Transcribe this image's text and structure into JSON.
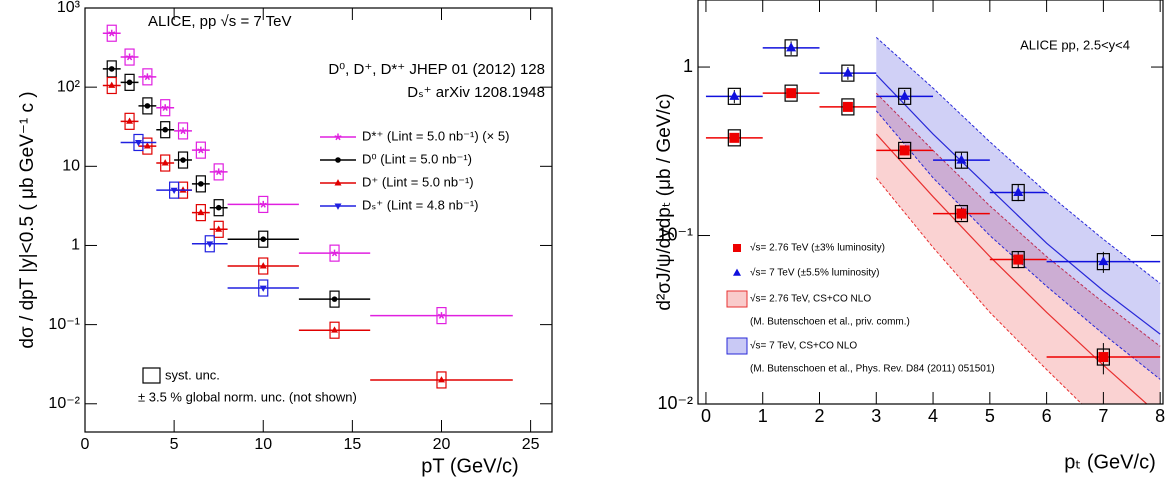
{
  "chart_data": [
    {
      "type": "scatter",
      "log_y": true,
      "xlabel": "pT (GeV/c)",
      "ylabel": "dσ / dpT |y|<0.5  ( μb GeV⁻¹ c )",
      "xlim": [
        0,
        26.2
      ],
      "ylim": [
        0.0044,
        1000
      ],
      "xticks": [
        0,
        5,
        10,
        15,
        20,
        25
      ],
      "yticks": [
        {
          "value": 0.01,
          "label": "10⁻²"
        },
        {
          "value": 0.1,
          "label": "10⁻¹"
        },
        1,
        10,
        {
          "value": 100,
          "label": "10²"
        },
        {
          "value": 1000,
          "label": "10³"
        }
      ],
      "annotations": [
        "ALICE, pp √s = 7 TeV",
        "D⁰, D⁺, D*⁺ JHEP 01 (2012) 128",
        "Dₛ⁺  arXiv 1208.1948",
        "syst. unc.",
        "± 3.5 % global norm. unc. (not shown)"
      ],
      "series": [
        {
          "name": "D*⁺ (Lint = 5.0 nb⁻¹) (× 5)",
          "color": "#e020e0",
          "marker": "star",
          "x": [
            1.5,
            2.5,
            3.5,
            4.5,
            5.5,
            6.5,
            7.5,
            10,
            14,
            20
          ],
          "xerr": [
            0.5,
            0.5,
            0.5,
            0.5,
            0.5,
            0.5,
            0.5,
            2,
            2,
            4
          ],
          "values": [
            480,
            240,
            135,
            55,
            28,
            16,
            8.5,
            3.3,
            0.8,
            0.13
          ]
        },
        {
          "name": "D⁰ (Lint = 5.0 nb⁻¹)",
          "color": "#000000",
          "marker": "circle",
          "x": [
            1.5,
            2.5,
            3.5,
            4.5,
            5.5,
            6.5,
            7.5,
            10,
            14
          ],
          "xerr": [
            0.5,
            0.5,
            0.5,
            0.5,
            0.5,
            0.5,
            0.5,
            2,
            2
          ],
          "values": [
            170,
            115,
            58,
            29,
            12,
            6,
            3,
            1.2,
            0.21
          ]
        },
        {
          "name": "D⁺ (Lint = 5.0 nb⁻¹)",
          "color": "#e00000",
          "marker": "triangle",
          "x": [
            1.5,
            2.5,
            3.5,
            4.5,
            5.5,
            6.5,
            7.5,
            10,
            14,
            20
          ],
          "xerr": [
            0.5,
            0.5,
            0.5,
            0.5,
            0.5,
            0.5,
            0.5,
            2,
            2,
            4
          ],
          "values": [
            105,
            37,
            18,
            11,
            5,
            2.6,
            1.6,
            0.55,
            0.085,
            0.02
          ]
        },
        {
          "name": "Dₛ⁺ (Lint = 4.8 nb⁻¹)",
          "color": "#2020e0",
          "marker": "triangle-down",
          "x": [
            3,
            5,
            7,
            10
          ],
          "xerr": [
            1,
            1,
            1,
            2
          ],
          "values": [
            20,
            5,
            1.05,
            0.29
          ]
        }
      ]
    },
    {
      "type": "scatter",
      "log_y": true,
      "xlabel": "pₜ (GeV/c)",
      "ylabel": "d²σJ/ψ/dydpₜ (μb / GeV/c)",
      "xlim": [
        -0.14,
        8.05
      ],
      "ylim": [
        0.01,
        2.5
      ],
      "xticks": [
        0,
        1,
        2,
        3,
        4,
        5,
        6,
        7,
        8
      ],
      "yticks": [
        {
          "value": 0.01,
          "label": "10⁻²"
        },
        {
          "value": 0.1,
          "label": "10⁻¹"
        },
        1
      ],
      "annotations": [
        "ALICE pp, 2.5<y<4"
      ],
      "series": [
        {
          "name": "√s= 2.76 TeV (±3% luminosity)",
          "color": "#ee0000",
          "marker": "square",
          "x": [
            0.5,
            1.5,
            2.5,
            3.5,
            4.5,
            5.5,
            7
          ],
          "xerr": [
            0.5,
            0.5,
            0.5,
            0.5,
            0.5,
            0.5,
            1
          ],
          "values": [
            0.38,
            0.7,
            0.58,
            0.32,
            0.135,
            0.072,
            0.019
          ],
          "yerr": [
            0.02,
            0.03,
            0.03,
            0.02,
            0.012,
            0.008,
            0.004
          ]
        },
        {
          "name": "√s= 7 TeV (±5.5% luminosity)",
          "color": "#1010dd",
          "marker": "triangle",
          "x": [
            0.5,
            1.5,
            2.5,
            3.5,
            4.5,
            5.5,
            7
          ],
          "xerr": [
            0.5,
            0.5,
            0.5,
            0.5,
            0.5,
            0.5,
            1
          ],
          "values": [
            0.67,
            1.3,
            0.92,
            0.67,
            0.28,
            0.18,
            0.07
          ],
          "yerr": [
            0.06,
            0.12,
            0.08,
            0.06,
            0.03,
            0.02,
            0.01
          ]
        }
      ],
      "bands": [
        {
          "name": "√s= 2.76 TeV, CS+CO NLO",
          "note": "(M. Butenschoen et al., priv. comm.)",
          "color": "#e83030",
          "x": [
            3,
            4,
            5,
            6,
            7,
            8
          ],
          "values": [
            0.4,
            0.17,
            0.075,
            0.035,
            0.017,
            0.0085
          ],
          "lower": [
            0.22,
            0.085,
            0.035,
            0.016,
            0.0075,
            0.004
          ],
          "upper": [
            0.7,
            0.32,
            0.15,
            0.075,
            0.04,
            0.022
          ]
        },
        {
          "name": "√s= 7 TeV, CS+CO NLO",
          "note": "(M. Butenschoen et al., Phys. Rev. D84 (2011) 051501)",
          "color": "#2828d8",
          "x": [
            3,
            4,
            5,
            6,
            7,
            8
          ],
          "values": [
            0.9,
            0.4,
            0.19,
            0.09,
            0.047,
            0.026
          ],
          "lower": [
            0.55,
            0.22,
            0.1,
            0.05,
            0.026,
            0.014
          ],
          "upper": [
            1.5,
            0.75,
            0.36,
            0.18,
            0.095,
            0.052
          ]
        }
      ]
    }
  ]
}
